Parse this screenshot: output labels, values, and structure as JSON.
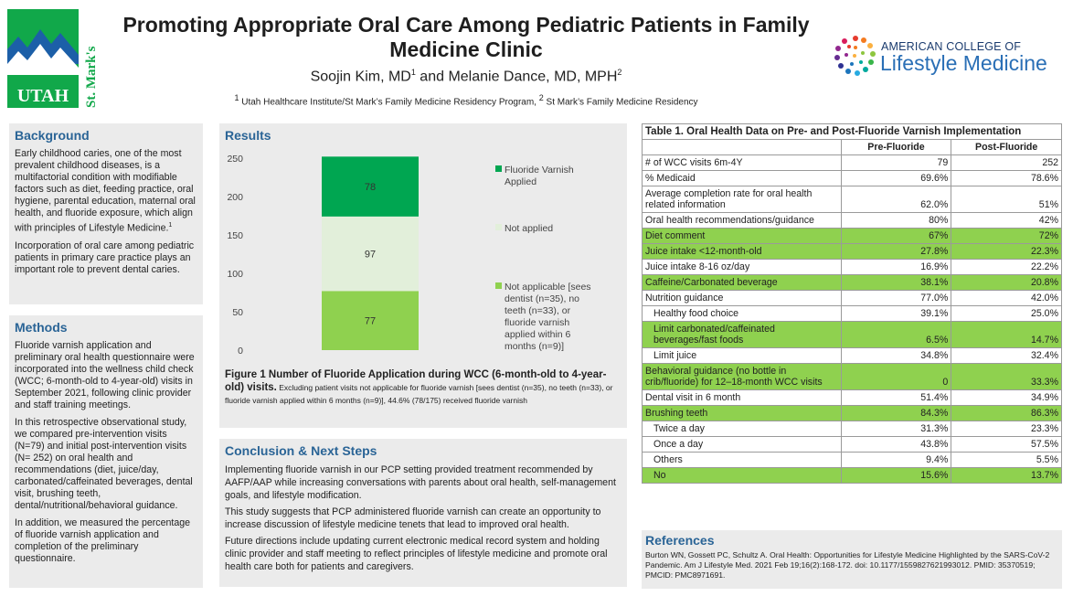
{
  "header": {
    "title": "Promoting Appropriate Oral Care Among Pediatric Patients in Family Medicine Clinic",
    "authors_part1": "Soojin Kim, MD",
    "authors_sup1": "1",
    "authors_part2": " and Melanie Dance, MD, MPH",
    "authors_sup2": "2",
    "affil_sup1": "1",
    "affil_1": " Utah Healthcare Institute/St Mark’s Family Medicine Residency Program, ",
    "affil_sup2": "2",
    "affil_2": " St Mark’s Family Medicine Residency",
    "logo_left_text": "UTAH",
    "logo_left_side": "St. Mark's",
    "logo_right_line1": "AMERICAN COLLEGE OF",
    "logo_right_line2": "Lifestyle Medicine"
  },
  "background": {
    "heading": "Background",
    "p1": "Early childhood caries, one of the most prevalent childhood diseases, is a multifactorial condition with modifiable factors such as diet, feeding practice, oral hygiene, parental education, maternal oral health, and fluoride exposure, which align with principles of Lifestyle Medicine.",
    "p1_sup": "1",
    "p2": "Incorporation of oral care among pediatric patients in primary care practice plays an important role to prevent dental caries."
  },
  "methods": {
    "heading": "Methods",
    "p1": "Fluoride varnish application and preliminary oral health questionnaire were incorporated into the wellness child check (WCC; 6-month-old to 4-year-old) visits in September 2021, following clinic provider and staff training meetings.",
    "p2": "In this retrospective observational study, we compared pre-intervention visits (N=79) and initial post-intervention visits (N= 252) on oral health and recommendations (diet, juice/day, carbonated/caffeinated beverages, dental visit, brushing teeth, dental/nutritional/behavioral guidance.",
    "p3": "In addition, we measured the percentage of fluoride varnish application and completion of the preliminary questionnaire."
  },
  "results": {
    "heading": "Results",
    "fig_title": "Figure 1 Number of Fluoride Application during WCC (6-month-old to 4-year-old) visits.",
    "fig_note": " Excluding patient visits not applicable for fluoride varnish [sees dentist (n=35), no teeth (n=33), or fluoride varnish applied within 6 months (n=9)],  44.6% (78/175) received fluoride varnish"
  },
  "chart_data": {
    "type": "bar",
    "stacked": true,
    "categories": [
      ""
    ],
    "series": [
      {
        "name": "Not applicable [sees dentist (n=35), no teeth (n=33), or fluoride varnish applied within 6 months (n=9)]",
        "values": [
          77
        ],
        "color": "#8fd14f"
      },
      {
        "name": "Not applied",
        "values": [
          97
        ],
        "color": "#e2efda"
      },
      {
        "name": "Fluoride Varnish Applied",
        "values": [
          78
        ],
        "color": "#00a651"
      }
    ],
    "legend_order": [
      2,
      1,
      0
    ],
    "yticks": [
      "0",
      "50",
      "100",
      "150",
      "200",
      "250"
    ],
    "ylim": [
      0,
      250
    ],
    "title": "",
    "xlabel": "",
    "ylabel": ""
  },
  "conclusion": {
    "heading": "Conclusion & Next Steps",
    "p1": "Implementing fluoride varnish in our PCP setting provided treatment recommended by AAFP/AAP while increasing conversations with parents about oral health, self-management goals, and lifestyle modification.",
    "p2": "This study suggests that PCP administered fluoride varnish can create an opportunity to increase discussion of lifestyle medicine tenets that lead to improved oral health.",
    "p3": "Future directions include updating current electronic medical record system and holding clinic provider and staff meeting to reflect principles of lifestyle medicine and promote oral health care both for patients and caregivers."
  },
  "table": {
    "title": "Table 1. Oral Health Data on Pre- and Post-Fluoride Varnish Implementation",
    "col_pre": "Pre-Fluoride",
    "col_post": "Post-Fluoride",
    "rows": [
      {
        "label": "# of WCC visits 6m-4Y",
        "pre": "79",
        "post": "252",
        "hl": false,
        "indent": false
      },
      {
        "label": "% Medicaid",
        "pre": "69.6%",
        "post": "78.6%",
        "hl": false,
        "indent": false
      },
      {
        "label": "Average completion rate for oral health related information",
        "pre": "62.0%",
        "post": "51%",
        "hl": false,
        "indent": false
      },
      {
        "label": "Oral health recommendations/guidance",
        "pre": "80%",
        "post": "42%",
        "hl": false,
        "indent": false
      },
      {
        "label": "Diet comment",
        "pre": "67%",
        "post": "72%",
        "hl": true,
        "indent": false
      },
      {
        "label": "Juice intake <12-month-old",
        "pre": "27.8%",
        "post": "22.3%",
        "hl": true,
        "indent": false
      },
      {
        "label": "Juice intake 8-16 oz/day",
        "pre": "16.9%",
        "post": "22.2%",
        "hl": false,
        "indent": false
      },
      {
        "label": "Caffeine/Carbonated beverage",
        "pre": "38.1%",
        "post": "20.8%",
        "hl": true,
        "indent": false
      },
      {
        "label": "Nutrition guidance",
        "pre": "77.0%",
        "post": "42.0%",
        "hl": false,
        "indent": false
      },
      {
        "label": "Healthy food choice",
        "pre": "39.1%",
        "post": "25.0%",
        "hl": false,
        "indent": true
      },
      {
        "label": "Limit carbonated/caffeinated beverages/fast foods",
        "pre": "6.5%",
        "post": "14.7%",
        "hl": true,
        "indent": true
      },
      {
        "label": "Limit juice",
        "pre": "34.8%",
        "post": "32.4%",
        "hl": false,
        "indent": true
      },
      {
        "label": "Behavioral guidance (no bottle in crib/fluoride) for 12–18-month WCC visits",
        "pre": "0",
        "post": "33.3%",
        "hl": true,
        "indent": false
      },
      {
        "label": "Dental visit in 6 month",
        "pre": "51.4%",
        "post": "34.9%",
        "hl": false,
        "indent": false
      },
      {
        "label": "Brushing teeth",
        "pre": "84.3%",
        "post": "86.3%",
        "hl": true,
        "indent": false
      },
      {
        "label": "Twice a day",
        "pre": "31.3%",
        "post": "23.3%",
        "hl": false,
        "indent": true
      },
      {
        "label": "Once a day",
        "pre": "43.8%",
        "post": "57.5%",
        "hl": false,
        "indent": true
      },
      {
        "label": "Others",
        "pre": "9.4%",
        "post": "5.5%",
        "hl": false,
        "indent": true
      },
      {
        "label": "No",
        "pre": "15.6%",
        "post": "13.7%",
        "hl": true,
        "indent": true
      }
    ]
  },
  "references": {
    "heading": "References",
    "ref1": "Burton WN, Gossett PC, Schultz A. Oral Health: Opportunities for Lifestyle Medicine Highlighted by the SARS-CoV-2 Pandemic. Am J Lifestyle Med. 2021 Feb 19;16(2):168-172. doi: 10.1177/1559827621993012. PMID: 35370519; PMCID: PMC8971691."
  },
  "colors": {
    "heading_blue": "#2a6496",
    "highlight_green": "#8fd14f",
    "dark_green": "#00a651",
    "light_green": "#e2efda",
    "panel_grey": "#ebebeb"
  }
}
